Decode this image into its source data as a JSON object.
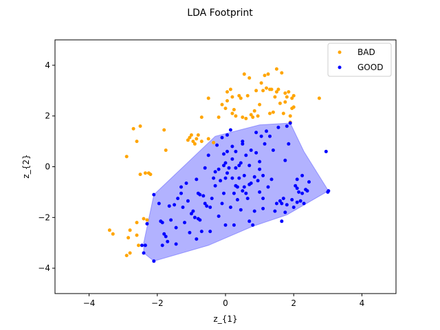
{
  "chart_data": {
    "type": "scatter",
    "title": "LDA Footprint",
    "xlabel": "z_{1}",
    "ylabel": "z_{2}",
    "xlim": [
      -5,
      5
    ],
    "ylim": [
      -5,
      5
    ],
    "xticks": [
      -4,
      -2,
      0,
      2,
      4
    ],
    "yticks": [
      -4,
      -2,
      0,
      2,
      4
    ],
    "xtick_labels": [
      "−4",
      "−2",
      "0",
      "2",
      "4"
    ],
    "ytick_labels": [
      "−4",
      "−2",
      "0",
      "2",
      "4"
    ],
    "grid": false,
    "legend_position": "top-right",
    "footprint_polygon": {
      "series": "GOOD",
      "color": "#0000ff",
      "opacity": 0.3,
      "points": [
        [
          -2.1,
          -3.72
        ],
        [
          -2.4,
          -3.4
        ],
        [
          -2.4,
          -3.0
        ],
        [
          -2.1,
          -1.1
        ],
        [
          -0.3,
          1.2
        ],
        [
          1.0,
          1.65
        ],
        [
          1.9,
          1.72
        ],
        [
          2.3,
          0.6
        ],
        [
          3.02,
          -0.95
        ],
        [
          1.8,
          -1.9
        ],
        [
          0.8,
          -2.35
        ],
        [
          -0.5,
          -3.1
        ]
      ]
    },
    "series": [
      {
        "name": "BAD",
        "color": "#ffa500",
        "points": [
          [
            -3.4,
            -2.5
          ],
          [
            -3.3,
            -2.65
          ],
          [
            -2.9,
            -3.5
          ],
          [
            -2.8,
            -3.4
          ],
          [
            -2.85,
            -2.8
          ],
          [
            -2.8,
            -2.5
          ],
          [
            -2.6,
            -2.7
          ],
          [
            -2.55,
            -3.1
          ],
          [
            -2.6,
            -2.2
          ],
          [
            -2.4,
            -2.05
          ],
          [
            -2.3,
            -2.1
          ],
          [
            -2.9,
            0.4
          ],
          [
            -2.7,
            1.5
          ],
          [
            -2.6,
            1.0
          ],
          [
            -2.5,
            1.6
          ],
          [
            -2.5,
            -0.3
          ],
          [
            -2.35,
            -0.25
          ],
          [
            -2.2,
            -0.3
          ],
          [
            -2.25,
            -0.25
          ],
          [
            -1.8,
            1.45
          ],
          [
            -1.75,
            0.65
          ],
          [
            -1.1,
            1.05
          ],
          [
            -1.05,
            1.15
          ],
          [
            -1.0,
            1.25
          ],
          [
            -0.95,
            1.0
          ],
          [
            -0.9,
            0.9
          ],
          [
            -0.85,
            1.1
          ],
          [
            -0.8,
            1.25
          ],
          [
            -0.7,
            1.0
          ],
          [
            -0.5,
            1.1
          ],
          [
            -0.35,
            0.95
          ],
          [
            -0.7,
            1.95
          ],
          [
            -0.5,
            2.7
          ],
          [
            -0.2,
            1.95
          ],
          [
            -0.1,
            2.45
          ],
          [
            0.0,
            2.3
          ],
          [
            0.05,
            2.6
          ],
          [
            0.05,
            2.95
          ],
          [
            0.15,
            3.05
          ],
          [
            0.2,
            2.75
          ],
          [
            0.2,
            2.1
          ],
          [
            0.3,
            2.0
          ],
          [
            0.25,
            2.25
          ],
          [
            0.4,
            2.8
          ],
          [
            0.45,
            2.7
          ],
          [
            0.5,
            1.95
          ],
          [
            0.55,
            3.65
          ],
          [
            0.6,
            1.9
          ],
          [
            0.65,
            2.8
          ],
          [
            0.7,
            3.5
          ],
          [
            0.75,
            2.05
          ],
          [
            0.8,
            1.95
          ],
          [
            0.85,
            2.2
          ],
          [
            0.95,
            2.0
          ],
          [
            0.9,
            3.0
          ],
          [
            1.0,
            2.45
          ],
          [
            1.05,
            3.3
          ],
          [
            1.1,
            3.0
          ],
          [
            1.15,
            3.6
          ],
          [
            1.2,
            3.1
          ],
          [
            1.25,
            3.65
          ],
          [
            1.3,
            3.05
          ],
          [
            1.3,
            2.1
          ],
          [
            1.35,
            3.05
          ],
          [
            1.45,
            2.75
          ],
          [
            1.5,
            2.95
          ],
          [
            1.5,
            3.85
          ],
          [
            1.55,
            3.05
          ],
          [
            1.6,
            2.5
          ],
          [
            1.65,
            3.7
          ],
          [
            1.7,
            2.1
          ],
          [
            1.75,
            2.9
          ],
          [
            1.75,
            2.55
          ],
          [
            1.8,
            2.75
          ],
          [
            1.85,
            2.95
          ],
          [
            1.9,
            2.0
          ],
          [
            1.9,
            1.75
          ],
          [
            1.95,
            2.3
          ],
          [
            1.95,
            2.7
          ],
          [
            2.0,
            2.8
          ],
          [
            2.0,
            2.35
          ],
          [
            2.75,
            2.7
          ],
          [
            1.4,
            2.15
          ]
        ]
      },
      {
        "name": "GOOD",
        "color": "#0000ff",
        "points": [
          [
            -2.1,
            -3.72
          ],
          [
            -2.4,
            -3.4
          ],
          [
            -2.45,
            -3.1
          ],
          [
            -2.35,
            -3.1
          ],
          [
            -2.3,
            -2.25
          ],
          [
            -2.1,
            -1.1
          ],
          [
            -1.95,
            -1.45
          ],
          [
            -1.9,
            -2.15
          ],
          [
            -1.85,
            -2.2
          ],
          [
            -1.8,
            -2.65
          ],
          [
            -1.75,
            -2.75
          ],
          [
            -1.7,
            -2.95
          ],
          [
            -1.85,
            -3.1
          ],
          [
            -1.65,
            -1.55
          ],
          [
            -1.6,
            -2.1
          ],
          [
            -1.5,
            -1.5
          ],
          [
            -1.45,
            -3.05
          ],
          [
            -1.45,
            -2.4
          ],
          [
            -1.4,
            -1.25
          ],
          [
            -1.3,
            -1.05
          ],
          [
            -1.3,
            -0.8
          ],
          [
            -1.25,
            -1.6
          ],
          [
            -1.2,
            -2.2
          ],
          [
            -1.15,
            -0.65
          ],
          [
            -1.1,
            -1.35
          ],
          [
            -1.05,
            -2.6
          ],
          [
            -1.0,
            -1.85
          ],
          [
            -0.95,
            -1.75
          ],
          [
            -0.9,
            -2.0
          ],
          [
            -0.85,
            -2.85
          ],
          [
            -0.85,
            -0.5
          ],
          [
            -0.8,
            -1.05
          ],
          [
            -0.8,
            -2.05
          ],
          [
            -0.75,
            -1.1
          ],
          [
            -0.75,
            -2.1
          ],
          [
            -0.7,
            -2.55
          ],
          [
            -0.65,
            -1.15
          ],
          [
            -0.6,
            -1.45
          ],
          [
            -0.55,
            -1.55
          ],
          [
            -0.6,
            -0.05
          ],
          [
            -0.5,
            0.45
          ],
          [
            -0.45,
            -1.6
          ],
          [
            -0.45,
            -2.55
          ],
          [
            -0.4,
            -1.25
          ],
          [
            -0.35,
            -0.45
          ],
          [
            -0.3,
            -0.75
          ],
          [
            -0.3,
            -0.2
          ],
          [
            -0.25,
            0.85
          ],
          [
            -0.2,
            -1.95
          ],
          [
            -0.2,
            -0.1
          ],
          [
            -0.15,
            -0.55
          ],
          [
            -0.1,
            -1.45
          ],
          [
            -0.1,
            1.15
          ],
          [
            -0.05,
            -1.05
          ],
          [
            -0.05,
            0.05
          ],
          [
            0.0,
            -2.3
          ],
          [
            0.0,
            -0.45
          ],
          [
            -0.05,
            0.5
          ],
          [
            0.05,
            -0.25
          ],
          [
            0.0,
            0.15
          ],
          [
            0.05,
            0.6
          ],
          [
            0.05,
            1.25
          ],
          [
            0.1,
            -0.05
          ],
          [
            0.15,
            -1.6
          ],
          [
            0.15,
            1.45
          ],
          [
            0.2,
            -0.45
          ],
          [
            0.2,
            0.3
          ],
          [
            0.2,
            0.8
          ],
          [
            0.25,
            -2.3
          ],
          [
            0.25,
            -1.05
          ],
          [
            0.3,
            -0.75
          ],
          [
            0.3,
            -0.05
          ],
          [
            0.3,
            0.6
          ],
          [
            0.35,
            -1.3
          ],
          [
            0.35,
            -0.8
          ],
          [
            0.4,
            -0.45
          ],
          [
            0.4,
            0.05
          ],
          [
            0.45,
            -1.7
          ],
          [
            0.45,
            0.15
          ],
          [
            0.5,
            -0.95
          ],
          [
            0.5,
            0.9
          ],
          [
            0.5,
            1.0
          ],
          [
            0.55,
            -0.35
          ],
          [
            0.55,
            -0.8
          ],
          [
            0.6,
            0.45
          ],
          [
            0.6,
            -1.05
          ],
          [
            0.65,
            -1.25
          ],
          [
            0.7,
            -0.7
          ],
          [
            0.7,
            -2.15
          ],
          [
            0.7,
            0.05
          ],
          [
            0.75,
            -0.65
          ],
          [
            0.75,
            0.65
          ],
          [
            0.8,
            -2.3
          ],
          [
            0.85,
            -1.75
          ],
          [
            0.85,
            -0.4
          ],
          [
            0.9,
            0.55
          ],
          [
            0.9,
            1.35
          ],
          [
            0.95,
            -0.55
          ],
          [
            1.0,
            -0.1
          ],
          [
            1.0,
            -1.0
          ],
          [
            1.0,
            0.2
          ],
          [
            1.05,
            1.2
          ],
          [
            1.1,
            -1.25
          ],
          [
            1.1,
            -0.35
          ],
          [
            1.1,
            -1.65
          ],
          [
            1.15,
            0.9
          ],
          [
            1.2,
            1.4
          ],
          [
            1.25,
            -0.8
          ],
          [
            1.3,
            1.2
          ],
          [
            1.35,
            -0.5
          ],
          [
            1.4,
            0.65
          ],
          [
            1.45,
            -1.75
          ],
          [
            1.5,
            -1.45
          ],
          [
            1.55,
            1.55
          ],
          [
            1.6,
            -1.35
          ],
          [
            1.65,
            -2.15
          ],
          [
            1.7,
            -1.25
          ],
          [
            1.75,
            0.25
          ],
          [
            1.8,
            1.6
          ],
          [
            1.85,
            0.9
          ],
          [
            1.9,
            1.72
          ],
          [
            2.0,
            -1.6
          ],
          [
            2.05,
            -0.75
          ],
          [
            2.1,
            -1.4
          ],
          [
            2.15,
            -1.0
          ],
          [
            2.2,
            -1.35
          ],
          [
            2.25,
            -1.05
          ],
          [
            2.3,
            -1.45
          ],
          [
            2.35,
            -0.9
          ],
          [
            2.4,
            -0.95
          ],
          [
            2.45,
            -0.6
          ],
          [
            2.25,
            -0.35
          ],
          [
            2.1,
            -0.85
          ],
          [
            1.95,
            -1.3
          ],
          [
            3.0,
            -1.0
          ],
          [
            3.02,
            -0.95
          ],
          [
            2.95,
            0.6
          ],
          [
            1.65,
            -1.45
          ],
          [
            1.75,
            -1.8
          ],
          [
            1.8,
            -1.5
          ],
          [
            2.1,
            -0.5
          ]
        ]
      }
    ]
  }
}
